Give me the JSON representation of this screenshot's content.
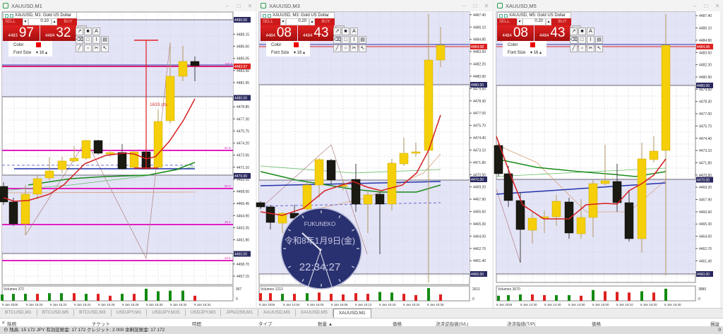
{
  "windows": [
    {
      "title": "XAUUSD,M1",
      "panel": {
        "symbol": "XAUUSD, M1:  Gold US Dollar",
        "sell": "SELL",
        "buy": "BUY",
        "lot": "0.10",
        "bid_prefix": "4483",
        "bid_big": "97",
        "ask_prefix": "4484",
        "ask_big": "32",
        "color_label": "Color",
        "font_size_label": "Font Size",
        "font_size": "16"
      },
      "axis_labels": [
        "4488.15",
        "4486.60",
        "4485.05",
        "4483.50",
        "4481.95",
        "4478.85",
        "4477.30",
        "4475.75",
        "4474.20",
        "4472.65",
        "4471.10",
        "4469.55",
        "4468.00",
        "4466.45",
        "4464.90",
        "4463.35",
        "4461.80",
        "4458.70",
        "4457.15"
      ],
      "boxed_labels": [
        "4490.00",
        "4480.00",
        "4470.00",
        "4460.00"
      ],
      "price_tag": "4483.97",
      "fib_labels": [
        "100.0",
        "61.8",
        "50.0",
        "38.2",
        "23.6"
      ],
      "annotation": "1633 pts",
      "volumes_label": "Volumes 372",
      "vol_max": "957",
      "vol_zero": "0",
      "dates": [
        "9 Jan 2026",
        "9 Jan 15:20",
        "9 Jan 15:22",
        "9 Jan 15:24",
        "9 Jan 15:26",
        "9 Jan 15:28",
        "9 Jan 15:30",
        "9 Jan 15:32",
        "9 Jan 15:34"
      ]
    },
    {
      "title": "XAUUSD,M3",
      "panel": {
        "symbol": "XAUUSD, M3:  Gold US Dollar",
        "sell": "SELL",
        "buy": "BUY",
        "lot": "0.20",
        "bid_prefix": "4484",
        "bid_big": "08",
        "ask_prefix": "4484",
        "ask_big": "43",
        "color_label": "Color",
        "font_size_label": "Font Size",
        "font_size": "16"
      },
      "axis_labels": [
        "4487.40",
        "4486.10",
        "4484.80",
        "4483.50",
        "4482.20",
        "4480.90",
        "4479.60",
        "4478.30",
        "4477.00",
        "4475.70",
        "4474.40",
        "4473.10",
        "4471.80",
        "4470.50",
        "4469.20",
        "4467.90",
        "4466.60",
        "4465.30",
        "4464.00",
        "4462.70",
        "4461.40"
      ],
      "boxed_labels": [
        "4480.00",
        "4470.00",
        "4460.00"
      ],
      "price_tag": "4484.08",
      "volumes_label": "Volumes 1213",
      "vol_max": "2611",
      "vol_zero": "0",
      "dates": [
        "9 Jan 2026",
        "9 Jan 14:54",
        "9 Jan 15:00",
        "9 Jan 15:06",
        "9 Jan 15:12",
        "9 Jan 15:18",
        "9 Jan 15:24",
        "9 Jan 15:30"
      ]
    },
    {
      "title": "XAUUSD,M5",
      "panel": {
        "symbol": "XAUUSD, M5:  Gold US Dollar",
        "sell": "SELL",
        "buy": "BUY",
        "lot": "0.20",
        "bid_prefix": "4484",
        "bid_big": "08",
        "ask_prefix": "4484",
        "ask_big": "43",
        "color_label": "Color",
        "font_size_label": "Font Size",
        "font_size": "16"
      },
      "axis_labels": [
        "4487.40",
        "4486.10",
        "4484.80",
        "4483.50",
        "4482.20",
        "4480.90",
        "4479.60",
        "4478.30",
        "4477.00",
        "4475.70",
        "4474.40",
        "4473.10",
        "4471.80",
        "4470.50",
        "4469.20",
        "4467.90",
        "4466.60",
        "4465.30",
        "4464.00",
        "4462.70",
        "4461.40"
      ],
      "boxed_labels": [
        "4480.00",
        "4470.00",
        "4460.00"
      ],
      "price_tag": "4484.08",
      "volumes_label": "Volumes 3670",
      "vol_max": "3880",
      "vol_zero": "0",
      "dates": [
        "9 Jan 2026",
        "9 Jan 14:30",
        "9 Jan 14:40",
        "9 Jan 14:50",
        "9 Jan 15:00",
        "9 Jan 15:10",
        "9 Jan 15:20",
        "9 Jan 15:30"
      ]
    }
  ],
  "clock": {
    "brand": "FUKUNEKO",
    "date": "令和8年1月9日(金)",
    "time": "22:34:27",
    "face_color": "#2a3170"
  },
  "tabs": [
    "BTCUSD,M1",
    "BTCUSD,M5",
    "BTCUSD,M3",
    "USDJPY,M1",
    "USDJPY,M15",
    "USDJPY,M3",
    "JPN225ft,M1",
    "XAUUSD,M3",
    "XAUUSD,M5",
    "XAUUSD,M1"
  ],
  "active_tab": "XAUUSD,M1",
  "terminal": {
    "columns": [
      "銘柄",
      "チケット",
      "時間",
      "タイプ",
      "数量 ▲",
      "価格",
      "決済逆指値(S/L)",
      "決済指値(T/P)",
      "価格",
      "損益"
    ],
    "status": "⊖ 残高: 15 172 JPY  有効証拠金: 17 172  クレジット: 2 000  余剰証拠金: 17 172",
    "profit_total": "0"
  },
  "colors": {
    "bull": "#f5cf0a",
    "bear": "#1a1a12",
    "zone": "#e4e4f7",
    "fib": "#e020c0",
    "vol_up": "#138a13",
    "vol_down": "#e02020",
    "sell_buy": "#cc1a1a"
  }
}
